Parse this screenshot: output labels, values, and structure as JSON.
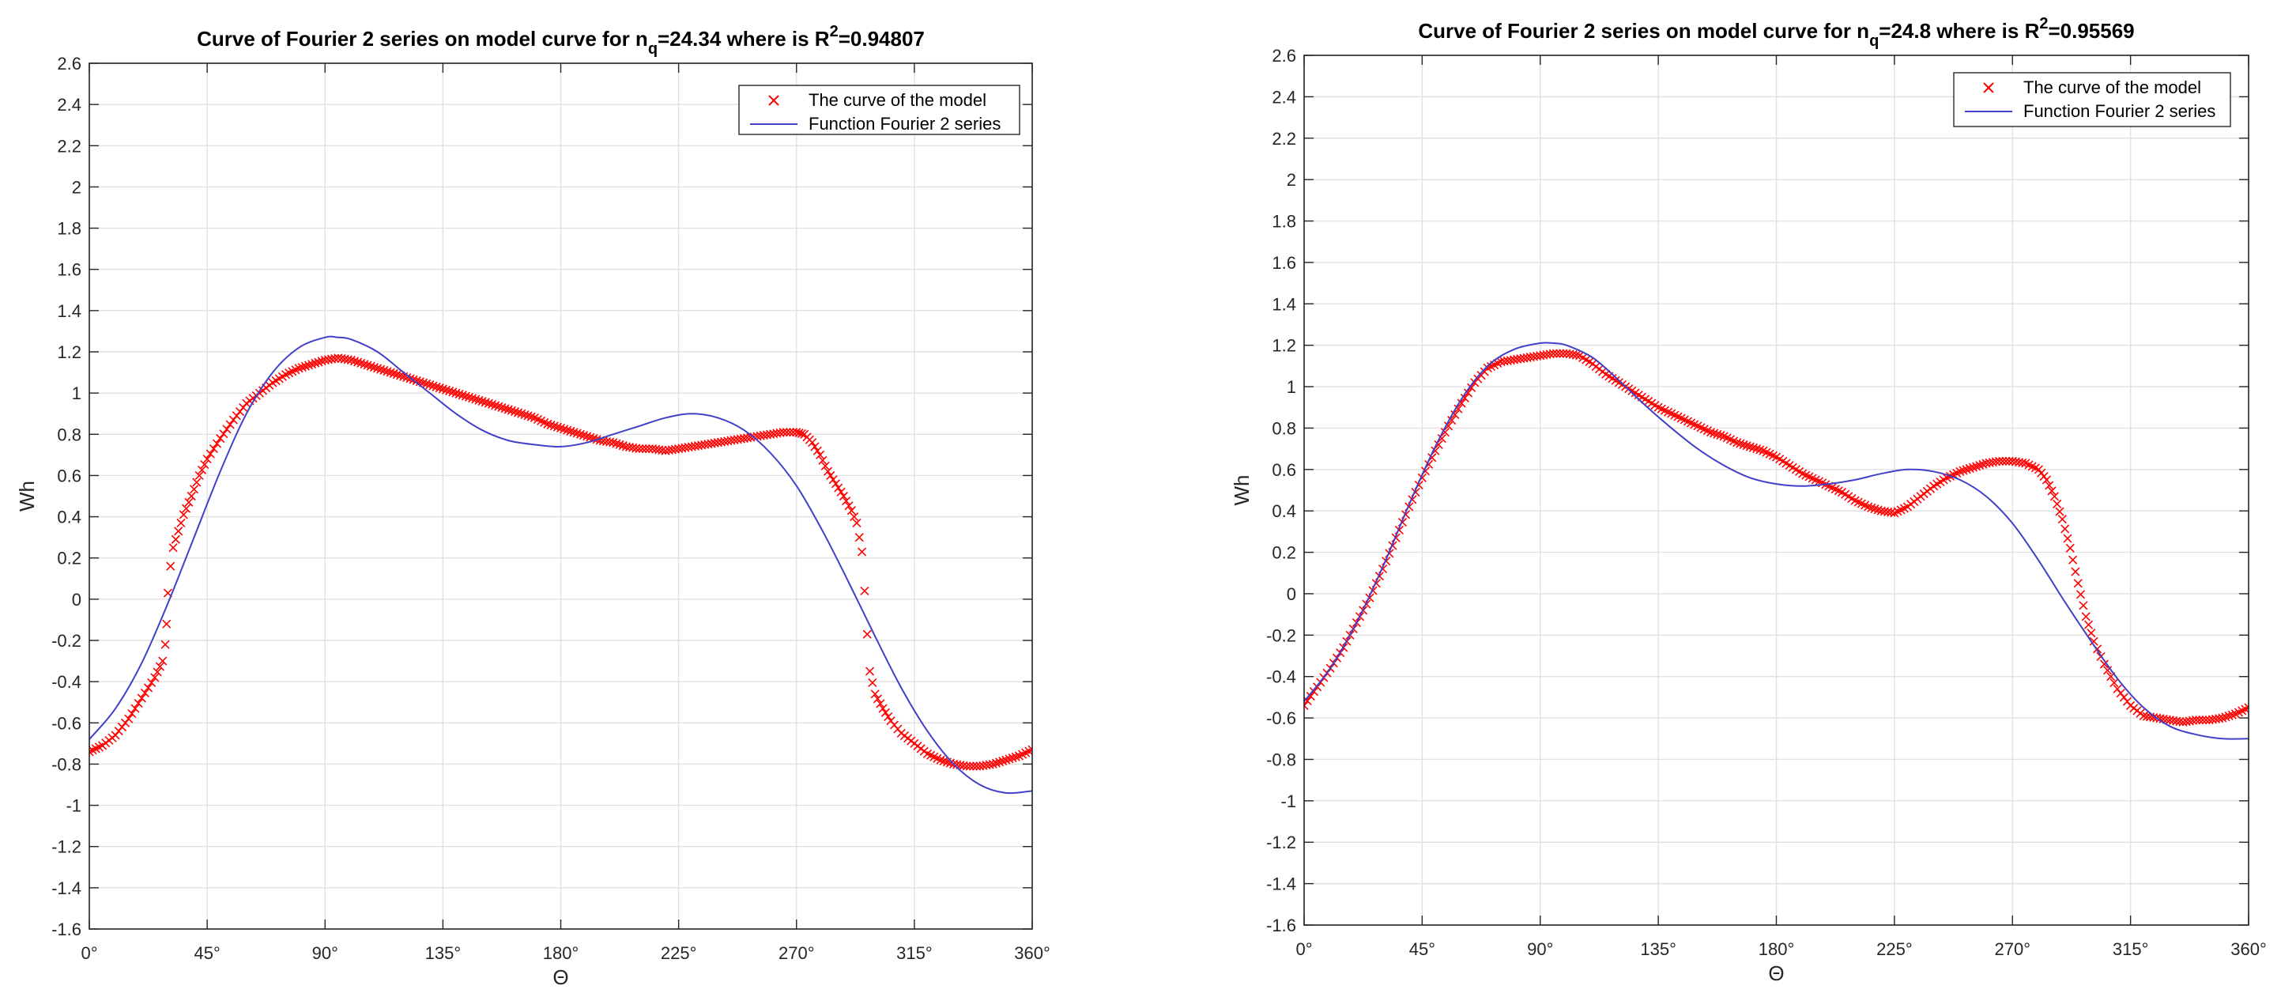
{
  "chart_data": [
    {
      "type": "line",
      "title_main": "Curve of Fourier 2 series on model curve for n",
      "title_sub": "q",
      "title_eq": "=24.34 where is R",
      "title_sup": "2",
      "title_tail": "=0.94807",
      "xlabel": "Θ",
      "ylabel": "Wh",
      "xlim": [
        0,
        360
      ],
      "ylim": [
        -1.6,
        2.6
      ],
      "xticks": [
        0,
        45,
        90,
        135,
        180,
        225,
        270,
        315,
        360
      ],
      "xtick_labels": [
        "0°",
        "45°",
        "90°",
        "135°",
        "180°",
        "225°",
        "270°",
        "315°",
        "360°"
      ],
      "yticks": [
        -1.6,
        -1.4,
        -1.2,
        -1,
        -0.8,
        -0.6,
        -0.4,
        -0.2,
        0,
        0.2,
        0.4,
        0.6,
        0.8,
        1,
        1.2,
        1.4,
        1.6,
        1.8,
        2,
        2.2,
        2.4,
        2.6
      ],
      "ytick_labels": [
        "-1.6",
        "-1.4",
        "-1.2",
        "-1",
        "-0.8",
        "-0.6",
        "-0.4",
        "-0.2",
        "0",
        "0.2",
        "0.4",
        "0.6",
        "0.8",
        "1",
        "1.2",
        "1.4",
        "1.6",
        "1.8",
        "2",
        "2.2",
        "2.4",
        "2.6"
      ],
      "grid": true,
      "legend_position": "top-right",
      "series": [
        {
          "name": "The curve of the model",
          "marker": "x",
          "color": "#ff0000",
          "points": [
            [
              0,
              -0.74
            ],
            [
              5,
              -0.71
            ],
            [
              10,
              -0.66
            ],
            [
              15,
              -0.58
            ],
            [
              20,
              -0.48
            ],
            [
              25,
              -0.38
            ],
            [
              28,
              -0.3
            ],
            [
              29,
              -0.22
            ],
            [
              29.5,
              -0.12
            ],
            [
              30,
              0.03
            ],
            [
              31,
              0.16
            ],
            [
              32,
              0.25
            ],
            [
              34,
              0.33
            ],
            [
              36,
              0.41
            ],
            [
              39,
              0.5
            ],
            [
              42,
              0.6
            ],
            [
              45,
              0.68
            ],
            [
              50,
              0.78
            ],
            [
              55,
              0.87
            ],
            [
              60,
              0.95
            ],
            [
              65,
              1.0
            ],
            [
              70,
              1.05
            ],
            [
              75,
              1.09
            ],
            [
              80,
              1.12
            ],
            [
              85,
              1.14
            ],
            [
              90,
              1.16
            ],
            [
              95,
              1.17
            ],
            [
              100,
              1.16
            ],
            [
              105,
              1.14
            ],
            [
              110,
              1.12
            ],
            [
              115,
              1.1
            ],
            [
              120,
              1.08
            ],
            [
              125,
              1.06
            ],
            [
              130,
              1.04
            ],
            [
              135,
              1.02
            ],
            [
              140,
              1.0
            ],
            [
              145,
              0.98
            ],
            [
              150,
              0.96
            ],
            [
              155,
              0.94
            ],
            [
              160,
              0.92
            ],
            [
              165,
              0.9
            ],
            [
              170,
              0.88
            ],
            [
              175,
              0.85
            ],
            [
              180,
              0.83
            ],
            [
              185,
              0.81
            ],
            [
              190,
              0.79
            ],
            [
              195,
              0.77
            ],
            [
              200,
              0.76
            ],
            [
              205,
              0.74
            ],
            [
              210,
              0.73
            ],
            [
              215,
              0.73
            ],
            [
              220,
              0.72
            ],
            [
              225,
              0.73
            ],
            [
              230,
              0.74
            ],
            [
              235,
              0.75
            ],
            [
              240,
              0.76
            ],
            [
              245,
              0.77
            ],
            [
              250,
              0.78
            ],
            [
              255,
              0.79
            ],
            [
              260,
              0.8
            ],
            [
              265,
              0.81
            ],
            [
              270,
              0.81
            ],
            [
              273,
              0.8
            ],
            [
              276,
              0.76
            ],
            [
              279,
              0.7
            ],
            [
              282,
              0.62
            ],
            [
              285,
              0.56
            ],
            [
              288,
              0.5
            ],
            [
              291,
              0.43
            ],
            [
              293,
              0.37
            ],
            [
              295,
              0.23
            ],
            [
              296,
              0.04
            ],
            [
              297,
              -0.17
            ],
            [
              298,
              -0.35
            ],
            [
              300,
              -0.46
            ],
            [
              303,
              -0.53
            ],
            [
              306,
              -0.59
            ],
            [
              310,
              -0.65
            ],
            [
              315,
              -0.7
            ],
            [
              320,
              -0.75
            ],
            [
              325,
              -0.78
            ],
            [
              330,
              -0.8
            ],
            [
              335,
              -0.81
            ],
            [
              340,
              -0.81
            ],
            [
              345,
              -0.8
            ],
            [
              350,
              -0.78
            ],
            [
              355,
              -0.76
            ],
            [
              360,
              -0.73
            ]
          ]
        },
        {
          "name": "Function Fourier 2 series",
          "marker": "line",
          "color": "#4040c8",
          "points": [
            [
              0,
              -0.68
            ],
            [
              10,
              -0.53
            ],
            [
              20,
              -0.31
            ],
            [
              30,
              -0.02
            ],
            [
              40,
              0.3
            ],
            [
              50,
              0.62
            ],
            [
              60,
              0.9
            ],
            [
              70,
              1.1
            ],
            [
              80,
              1.22
            ],
            [
              90,
              1.27
            ],
            [
              95,
              1.27
            ],
            [
              100,
              1.26
            ],
            [
              110,
              1.2
            ],
            [
              120,
              1.1
            ],
            [
              130,
              1.0
            ],
            [
              140,
              0.9
            ],
            [
              150,
              0.82
            ],
            [
              160,
              0.77
            ],
            [
              170,
              0.75
            ],
            [
              180,
              0.74
            ],
            [
              190,
              0.76
            ],
            [
              200,
              0.8
            ],
            [
              210,
              0.84
            ],
            [
              220,
              0.88
            ],
            [
              230,
              0.9
            ],
            [
              240,
              0.88
            ],
            [
              250,
              0.82
            ],
            [
              260,
              0.71
            ],
            [
              270,
              0.55
            ],
            [
              280,
              0.33
            ],
            [
              290,
              0.08
            ],
            [
              300,
              -0.18
            ],
            [
              310,
              -0.43
            ],
            [
              320,
              -0.64
            ],
            [
              330,
              -0.8
            ],
            [
              340,
              -0.9
            ],
            [
              350,
              -0.94
            ],
            [
              360,
              -0.93
            ]
          ]
        }
      ]
    },
    {
      "type": "line",
      "title_main": "Curve of Fourier 2 series on model curve for n",
      "title_sub": "q",
      "title_eq": "=24.8 where is R",
      "title_sup": "2",
      "title_tail": "=0.95569",
      "xlabel": "Θ",
      "ylabel": "Wh",
      "xlim": [
        0,
        360
      ],
      "ylim": [
        -1.6,
        2.6
      ],
      "xticks": [
        0,
        45,
        90,
        135,
        180,
        225,
        270,
        315,
        360
      ],
      "xtick_labels": [
        "0°",
        "45°",
        "90°",
        "135°",
        "180°",
        "225°",
        "270°",
        "315°",
        "360°"
      ],
      "yticks": [
        -1.6,
        -1.4,
        -1.2,
        -1,
        -0.8,
        -0.6,
        -0.4,
        -0.2,
        0,
        0.2,
        0.4,
        0.6,
        0.8,
        1,
        1.2,
        1.4,
        1.6,
        1.8,
        2,
        2.2,
        2.4,
        2.6
      ],
      "ytick_labels": [
        "-1.6",
        "-1.4",
        "-1.2",
        "-1",
        "-0.8",
        "-0.6",
        "-0.4",
        "-0.2",
        "0",
        "0.2",
        "0.4",
        "0.6",
        "0.8",
        "1",
        "1.2",
        "1.4",
        "1.6",
        "1.8",
        "2",
        "2.2",
        "2.4",
        "2.6"
      ],
      "grid": true,
      "legend_position": "top-right",
      "series": [
        {
          "name": "The curve of the model",
          "marker": "x",
          "color": "#ff0000",
          "points": [
            [
              0,
              -0.54
            ],
            [
              5,
              -0.45
            ],
            [
              10,
              -0.36
            ],
            [
              15,
              -0.26
            ],
            [
              20,
              -0.14
            ],
            [
              25,
              -0.02
            ],
            [
              30,
              0.12
            ],
            [
              35,
              0.27
            ],
            [
              40,
              0.42
            ],
            [
              45,
              0.56
            ],
            [
              50,
              0.69
            ],
            [
              55,
              0.81
            ],
            [
              60,
              0.92
            ],
            [
              65,
              1.02
            ],
            [
              70,
              1.09
            ],
            [
              75,
              1.12
            ],
            [
              80,
              1.13
            ],
            [
              85,
              1.14
            ],
            [
              90,
              1.15
            ],
            [
              95,
              1.16
            ],
            [
              100,
              1.16
            ],
            [
              105,
              1.15
            ],
            [
              110,
              1.11
            ],
            [
              115,
              1.06
            ],
            [
              120,
              1.02
            ],
            [
              125,
              0.98
            ],
            [
              130,
              0.94
            ],
            [
              135,
              0.9
            ],
            [
              140,
              0.87
            ],
            [
              145,
              0.84
            ],
            [
              150,
              0.81
            ],
            [
              155,
              0.78
            ],
            [
              160,
              0.76
            ],
            [
              165,
              0.73
            ],
            [
              170,
              0.71
            ],
            [
              175,
              0.69
            ],
            [
              180,
              0.66
            ],
            [
              185,
              0.62
            ],
            [
              190,
              0.58
            ],
            [
              195,
              0.55
            ],
            [
              200,
              0.52
            ],
            [
              205,
              0.49
            ],
            [
              210,
              0.45
            ],
            [
              215,
              0.42
            ],
            [
              220,
              0.4
            ],
            [
              225,
              0.39
            ],
            [
              230,
              0.42
            ],
            [
              235,
              0.47
            ],
            [
              240,
              0.52
            ],
            [
              245,
              0.56
            ],
            [
              250,
              0.59
            ],
            [
              255,
              0.61
            ],
            [
              260,
              0.63
            ],
            [
              265,
              0.64
            ],
            [
              270,
              0.64
            ],
            [
              275,
              0.63
            ],
            [
              280,
              0.6
            ],
            [
              283,
              0.55
            ],
            [
              286,
              0.47
            ],
            [
              289,
              0.36
            ],
            [
              292,
              0.22
            ],
            [
              295,
              0.05
            ],
            [
              298,
              -0.11
            ],
            [
              301,
              -0.23
            ],
            [
              305,
              -0.34
            ],
            [
              310,
              -0.46
            ],
            [
              315,
              -0.54
            ],
            [
              320,
              -0.59
            ],
            [
              325,
              -0.6
            ],
            [
              330,
              -0.61
            ],
            [
              335,
              -0.62
            ],
            [
              340,
              -0.61
            ],
            [
              345,
              -0.61
            ],
            [
              350,
              -0.6
            ],
            [
              355,
              -0.58
            ],
            [
              360,
              -0.55
            ]
          ]
        },
        {
          "name": "Function Fourier 2 series",
          "marker": "line",
          "color": "#4040c8",
          "points": [
            [
              0,
              -0.52
            ],
            [
              10,
              -0.36
            ],
            [
              20,
              -0.14
            ],
            [
              30,
              0.13
            ],
            [
              40,
              0.43
            ],
            [
              50,
              0.71
            ],
            [
              60,
              0.94
            ],
            [
              70,
              1.1
            ],
            [
              80,
              1.18
            ],
            [
              90,
              1.21
            ],
            [
              95,
              1.21
            ],
            [
              100,
              1.2
            ],
            [
              110,
              1.14
            ],
            [
              120,
              1.03
            ],
            [
              130,
              0.91
            ],
            [
              140,
              0.8
            ],
            [
              150,
              0.7
            ],
            [
              160,
              0.62
            ],
            [
              170,
              0.56
            ],
            [
              180,
              0.53
            ],
            [
              190,
              0.52
            ],
            [
              200,
              0.53
            ],
            [
              210,
              0.55
            ],
            [
              220,
              0.58
            ],
            [
              230,
              0.6
            ],
            [
              240,
              0.59
            ],
            [
              250,
              0.55
            ],
            [
              260,
              0.47
            ],
            [
              270,
              0.34
            ],
            [
              280,
              0.16
            ],
            [
              290,
              -0.04
            ],
            [
              300,
              -0.23
            ],
            [
              310,
              -0.41
            ],
            [
              320,
              -0.55
            ],
            [
              330,
              -0.64
            ],
            [
              340,
              -0.68
            ],
            [
              350,
              -0.7
            ],
            [
              360,
              -0.7
            ]
          ]
        }
      ]
    }
  ]
}
